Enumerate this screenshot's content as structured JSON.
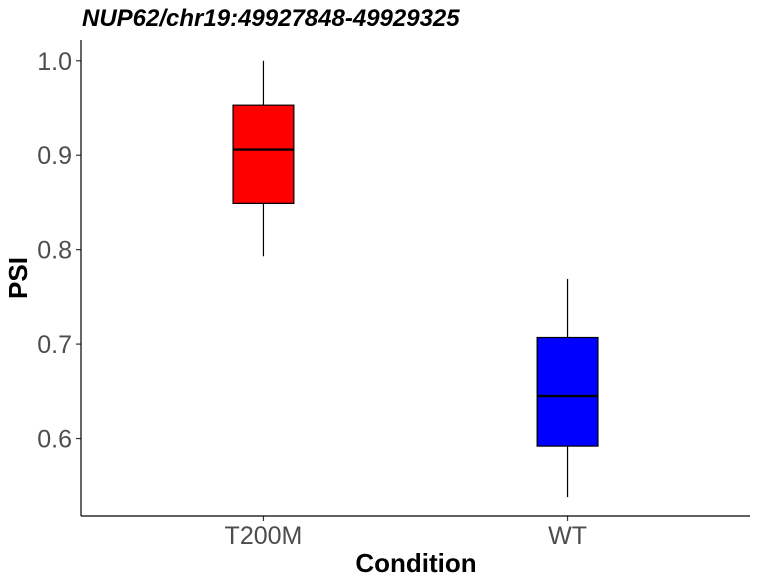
{
  "chart_data": {
    "type": "boxplot",
    "title": "NUP62/chr19:49927848-49929325",
    "xlabel": "Condition",
    "ylabel": "PSI",
    "ylim": [
      0.518,
      1.022
    ],
    "yticks": [
      "0.6",
      "0.7",
      "0.8",
      "0.9",
      "1.0"
    ],
    "grid": false,
    "legend": "none",
    "categories": [
      "T200M",
      "WT"
    ],
    "boxes": [
      {
        "category": "T200M",
        "min": 0.793,
        "q1": 0.849,
        "median": 0.906,
        "q3": 0.953,
        "max": 1.0,
        "color": "#ff0000"
      },
      {
        "category": "WT",
        "min": 0.538,
        "q1": 0.592,
        "median": 0.645,
        "q3": 0.707,
        "max": 0.769,
        "color": "#0000ff"
      }
    ]
  }
}
